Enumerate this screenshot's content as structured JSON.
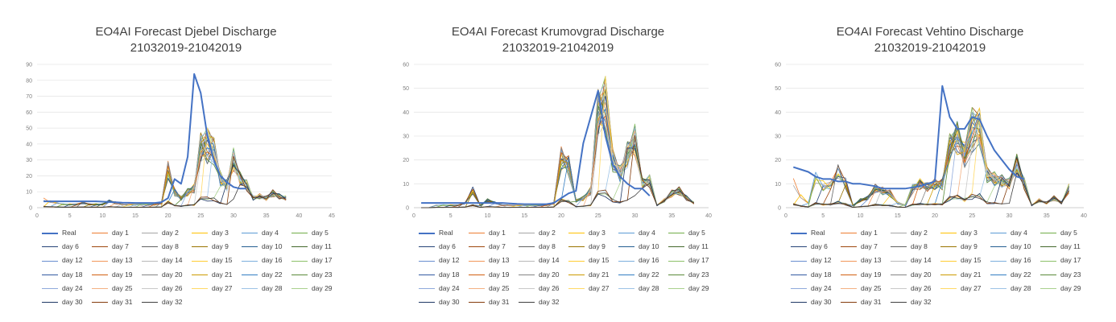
{
  "chart_data": [
    {
      "type": "line",
      "title": "EO4AI Forecast Djebel Discharge",
      "subtitle": "21032019-21042019",
      "xlim": [
        0,
        45
      ],
      "ylim": [
        0,
        90
      ],
      "x_ticks": [
        0,
        5,
        10,
        15,
        20,
        25,
        30,
        35,
        40,
        45
      ],
      "y_ticks": [
        0,
        10,
        20,
        30,
        40,
        50,
        60,
        70,
        80,
        90
      ],
      "grid": "horizontal",
      "legend": "bottom",
      "real": {
        "name": "Real",
        "x": [
          1,
          2,
          3,
          4,
          5,
          6,
          7,
          8,
          9,
          10,
          11,
          12,
          13,
          14,
          15,
          16,
          17,
          18,
          19,
          20,
          21,
          22,
          23,
          24,
          25,
          26,
          27,
          28,
          29,
          30,
          31,
          32
        ],
        "y": [
          4,
          4,
          4,
          4,
          4,
          4,
          4,
          4,
          4,
          3.8,
          3.6,
          3.4,
          3.2,
          3.1,
          3,
          3,
          3,
          3,
          3.5,
          6,
          18,
          15,
          32,
          84,
          72,
          45,
          30,
          20,
          16,
          13,
          12,
          12
        ]
      },
      "forecast_peak": {
        "x": 26,
        "y": 50
      },
      "x_forecast": [
        1,
        2,
        3,
        4,
        5,
        6,
        7,
        8,
        9,
        10,
        11,
        12,
        13,
        14,
        15,
        16,
        17,
        18,
        19,
        20,
        21,
        22,
        23,
        24,
        25,
        26,
        27,
        28,
        29,
        30,
        31,
        32,
        33,
        34,
        35,
        36,
        37,
        38
      ],
      "forecast_base": [
        5,
        4,
        3,
        2,
        2,
        2,
        3,
        2,
        2,
        2,
        4,
        3,
        2,
        2,
        2,
        2,
        2,
        2,
        3,
        24,
        10,
        6,
        10,
        12,
        38,
        48,
        36,
        18,
        14,
        30,
        18,
        14,
        6,
        7,
        6,
        9,
        7,
        6
      ]
    },
    {
      "type": "line",
      "title": "EO4AI Forecast Krumovgrad Discharge",
      "subtitle": "21032019-21042019",
      "xlim": [
        0,
        40
      ],
      "ylim": [
        0,
        60
      ],
      "x_ticks": [
        0,
        5,
        10,
        15,
        20,
        25,
        30,
        35,
        40
      ],
      "y_ticks": [
        0,
        10,
        20,
        30,
        40,
        50,
        60
      ],
      "grid": "horizontal",
      "legend": "bottom",
      "real": {
        "name": "Real",
        "x": [
          1,
          2,
          3,
          4,
          5,
          6,
          7,
          8,
          9,
          10,
          11,
          12,
          13,
          14,
          15,
          16,
          17,
          18,
          19,
          20,
          21,
          22,
          23,
          24,
          25,
          26,
          27,
          28,
          29,
          30,
          31,
          32
        ],
        "y": [
          2,
          2,
          2,
          2,
          2,
          2,
          2,
          2,
          2,
          2,
          2,
          2,
          1.8,
          1.6,
          1.5,
          1.5,
          1.5,
          1.5,
          2,
          4,
          6,
          7,
          27,
          38,
          49,
          30,
          18,
          13,
          10,
          8,
          8,
          5
        ]
      },
      "forecast_peak": {
        "x": 26,
        "y": 55
      },
      "x_forecast": [
        1,
        2,
        3,
        4,
        5,
        6,
        7,
        8,
        9,
        10,
        11,
        12,
        13,
        14,
        15,
        16,
        17,
        18,
        19,
        20,
        21,
        22,
        23,
        24,
        25,
        26,
        27,
        28,
        29,
        30,
        31,
        32,
        33,
        34,
        35,
        36,
        37,
        38
      ],
      "forecast_base": [
        0,
        0,
        1,
        1,
        1,
        1,
        2,
        7,
        1,
        3,
        2,
        1,
        1,
        1,
        1,
        1,
        1,
        1,
        2,
        21,
        18,
        3,
        4,
        7,
        40,
        50,
        20,
        14,
        22,
        28,
        10,
        11,
        1,
        3,
        6,
        7,
        4,
        2
      ]
    },
    {
      "type": "line",
      "title": "EO4AI Forecast Vehtino Discharge",
      "subtitle": "21032019-21042019",
      "xlim": [
        0,
        40
      ],
      "ylim": [
        0,
        60
      ],
      "x_ticks": [
        0,
        5,
        10,
        15,
        20,
        25,
        30,
        35,
        40
      ],
      "y_ticks": [
        0,
        10,
        20,
        30,
        40,
        50,
        60
      ],
      "grid": "horizontal",
      "legend": "bottom",
      "real": {
        "name": "Real",
        "x": [
          1,
          2,
          3,
          4,
          5,
          6,
          7,
          8,
          9,
          10,
          11,
          12,
          13,
          14,
          15,
          16,
          17,
          18,
          19,
          20,
          21,
          22,
          23,
          24,
          25,
          26,
          27,
          28,
          29,
          30,
          31,
          32
        ],
        "y": [
          17,
          16,
          15,
          13,
          12,
          12,
          11,
          11,
          10,
          10,
          9.5,
          9,
          8,
          8,
          8,
          8,
          8.5,
          9,
          10,
          11,
          51,
          38,
          33,
          33,
          38,
          37,
          30,
          24,
          20,
          16,
          13,
          12
        ]
      },
      "forecast_peak": {
        "x": 25,
        "y": 42
      },
      "x_forecast": [
        1,
        2,
        3,
        4,
        5,
        6,
        7,
        8,
        9,
        10,
        11,
        12,
        13,
        14,
        15,
        16,
        17,
        18,
        19,
        20,
        21,
        22,
        23,
        24,
        25,
        26,
        27,
        28,
        29,
        30,
        31,
        32,
        33,
        34,
        35,
        36,
        37,
        38
      ],
      "forecast_base": [
        10,
        5,
        2,
        12,
        9,
        9,
        15,
        10,
        1,
        3,
        4,
        8,
        7,
        6,
        2,
        1,
        8,
        10,
        9,
        10,
        10,
        26,
        30,
        22,
        38,
        34,
        14,
        12,
        11,
        10,
        18,
        10,
        1,
        3,
        2,
        4,
        2,
        8
      ]
    }
  ],
  "legend_labels": [
    "Real",
    "day 1",
    "day 2",
    "day 3",
    "day 4",
    "day 5",
    "day 6",
    "day 7",
    "day 8",
    "day 9",
    "day 10",
    "day 11",
    "day 12",
    "day 13",
    "day 14",
    "day 15",
    "day 16",
    "day 17",
    "day 18",
    "day 19",
    "day 20",
    "day 21",
    "day 22",
    "day 23",
    "day 24",
    "day 25",
    "day 26",
    "day 27",
    "day 28",
    "day 29",
    "day 30",
    "day 31",
    "day 32"
  ],
  "series_colors": [
    "#4472c4",
    "#ed7d31",
    "#a5a5a5",
    "#ffc000",
    "#5b9bd5",
    "#70ad47",
    "#264478",
    "#9e480e",
    "#636363",
    "#997300",
    "#255e91",
    "#43682b",
    "#698ed0",
    "#f1975a",
    "#b7b7b7",
    "#ffcd33",
    "#7cafdd",
    "#8cc168",
    "#335aa1",
    "#d26012",
    "#848484",
    "#cc9a00",
    "#327dc2",
    "#5a8a39",
    "#8faadc",
    "#f4b183",
    "#c9c9c9",
    "#ffd966",
    "#9dc3e6",
    "#a9d18e",
    "#1f3864",
    "#843c0c",
    "#404040"
  ]
}
